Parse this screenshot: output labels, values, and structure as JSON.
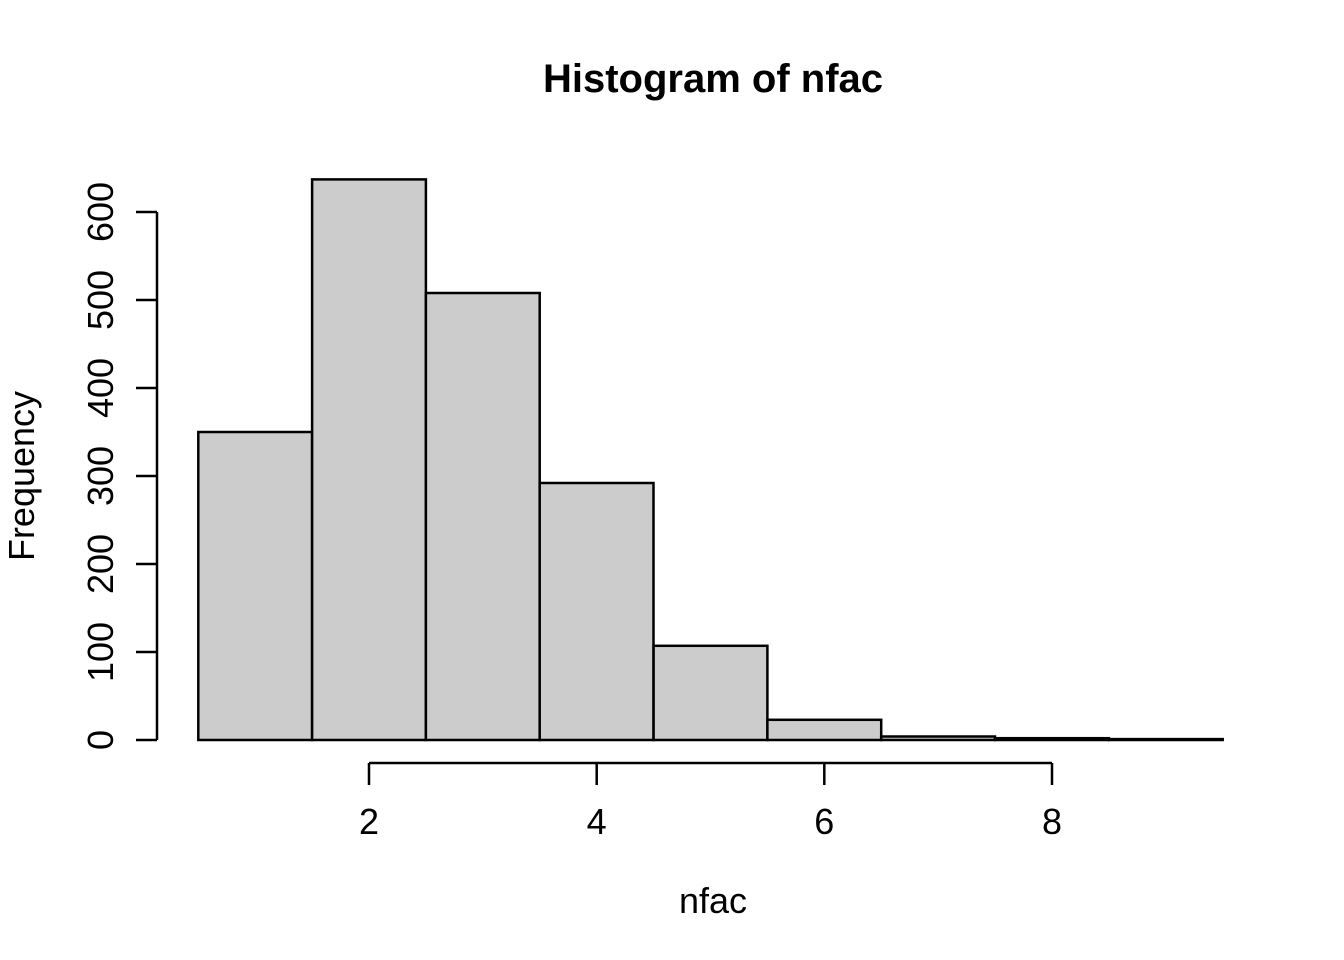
{
  "figure": {
    "background": "#FFFFFF"
  },
  "chart_data": {
    "type": "bar",
    "subtype": "histogram",
    "title": "Histogram of nfac",
    "xlabel": "nfac",
    "ylabel": "Frequency",
    "bin_edges": [
      0.5,
      1.5,
      2.5,
      3.5,
      4.5,
      5.5,
      6.5,
      7.5,
      8.5,
      9.5
    ],
    "counts": [
      350,
      637,
      508,
      292,
      107,
      23,
      4,
      2,
      1
    ],
    "x_ticks": [
      2,
      4,
      6,
      8
    ],
    "y_ticks": [
      0,
      100,
      200,
      300,
      400,
      500,
      600
    ],
    "xlim": [
      0.5,
      9.5
    ],
    "ylim": [
      0,
      640
    ],
    "grid": false,
    "legend": "none",
    "bar_fill": "#CCCCCC",
    "bar_border": "#000000",
    "axis_color": "#000000",
    "text_color": "#000000"
  }
}
